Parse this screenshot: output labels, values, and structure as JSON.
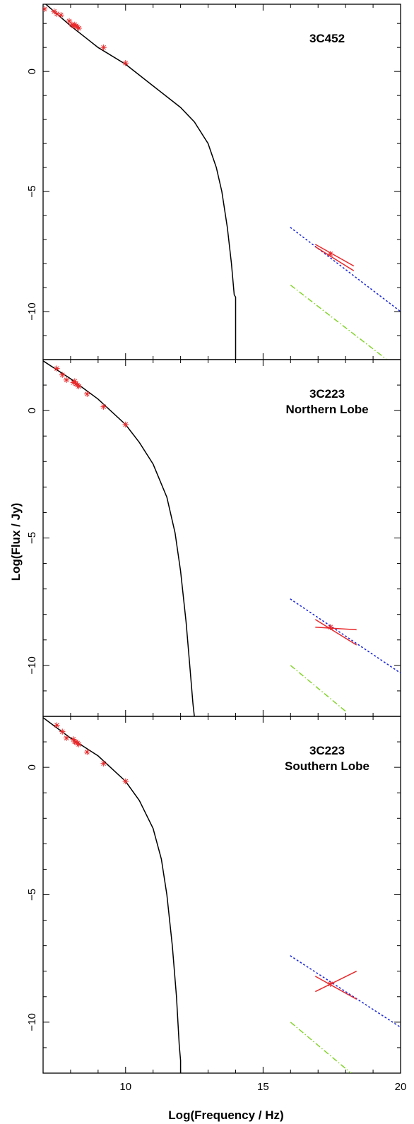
{
  "figure": {
    "xlabel": "Log(Frequency / Hz)",
    "ylabel": "Log(Flux / Jy)"
  },
  "styles": {
    "model_color": "#000000",
    "data_color": "#e8292b",
    "ic_cmb_color": "#1f2bd8",
    "ssc_color": "#7ed321"
  },
  "chart_data": [
    {
      "type": "line",
      "title": "3C452",
      "title_lines": [
        "3C452"
      ],
      "xlim": [
        7,
        20
      ],
      "ylim": [
        -12,
        2.8
      ],
      "x_ticks": [
        10,
        15,
        20
      ],
      "y_ticks": [
        0,
        -5,
        -10
      ],
      "radio_points": {
        "x": [
          7.05,
          7.4,
          7.5,
          7.65,
          7.95,
          8.05,
          8.1,
          8.15,
          8.2,
          8.25,
          8.3,
          9.2,
          10.0
        ],
        "y": [
          2.6,
          2.5,
          2.4,
          2.35,
          2.1,
          1.95,
          1.9,
          1.95,
          1.9,
          1.85,
          1.8,
          1.0,
          0.35
        ]
      },
      "model_curve": {
        "x": [
          7.0,
          8.0,
          9.0,
          10.0,
          11.0,
          12.0,
          12.5,
          13.0,
          13.3,
          13.5,
          13.7,
          13.85,
          13.95,
          14.0,
          14.0
        ],
        "y": [
          2.9,
          1.9,
          1.0,
          0.3,
          -0.6,
          -1.5,
          -2.1,
          -3.0,
          -4.0,
          -5.0,
          -6.5,
          -8.0,
          -9.3,
          -9.4,
          -12.0
        ]
      },
      "ic_cmb_model": {
        "x": [
          16.0,
          20.0
        ],
        "y": [
          -6.5,
          -10.0
        ]
      },
      "ssc_model": {
        "x": [
          16.0,
          19.5
        ],
        "y": [
          -8.9,
          -12.0
        ]
      },
      "xray_point": {
        "x": 17.45,
        "y": -7.6
      },
      "xray_bowtie": [
        {
          "x": [
            16.9,
            18.3
          ],
          "y": [
            -7.3,
            -8.3
          ]
        },
        {
          "x": [
            16.9,
            18.3
          ],
          "y": [
            -7.2,
            -8.1
          ]
        }
      ]
    },
    {
      "type": "line",
      "title": "3C223 Northern Lobe",
      "title_lines": [
        "3C223",
        "Northern Lobe"
      ],
      "xlim": [
        7,
        20
      ],
      "ylim": [
        -12,
        2.0
      ],
      "x_ticks": [
        10,
        15,
        20
      ],
      "y_ticks": [
        0,
        -5,
        -10
      ],
      "radio_points": {
        "x": [
          7.5,
          7.7,
          7.85,
          8.1,
          8.15,
          8.2,
          8.25,
          8.3,
          8.6,
          9.2,
          10.0
        ],
        "y": [
          1.65,
          1.4,
          1.2,
          1.1,
          1.15,
          1.05,
          1.0,
          0.95,
          0.65,
          0.15,
          -0.55
        ]
      },
      "model_curve": {
        "x": [
          7.0,
          8.0,
          9.0,
          10.0,
          10.5,
          11.0,
          11.5,
          11.8,
          12.0,
          12.2,
          12.35,
          12.45,
          12.5
        ],
        "y": [
          1.95,
          1.25,
          0.45,
          -0.55,
          -1.25,
          -2.1,
          -3.4,
          -4.8,
          -6.3,
          -8.3,
          -10.2,
          -11.5,
          -12.0
        ]
      },
      "ic_cmb_model": {
        "x": [
          16.0,
          20.0
        ],
        "y": [
          -7.4,
          -10.3
        ]
      },
      "ssc_model": {
        "x": [
          16.0,
          18.0
        ],
        "y": [
          -10.0,
          -11.8
        ]
      },
      "xray_point": {
        "x": 17.45,
        "y": -8.5
      },
      "xray_bowtie": [
        {
          "x": [
            16.9,
            18.4
          ],
          "y": [
            -8.5,
            -8.6
          ]
        },
        {
          "x": [
            16.9,
            18.4
          ],
          "y": [
            -8.2,
            -9.2
          ]
        }
      ]
    },
    {
      "type": "line",
      "title": "3C223 Southern Lobe",
      "title_lines": [
        "3C223",
        "Southern Lobe"
      ],
      "xlim": [
        7,
        20
      ],
      "ylim": [
        -12,
        2.0
      ],
      "x_ticks": [
        10,
        15,
        20
      ],
      "y_ticks": [
        0,
        -5,
        -10
      ],
      "radio_points": {
        "x": [
          7.5,
          7.7,
          7.85,
          8.1,
          8.15,
          8.2,
          8.25,
          8.3,
          8.6,
          9.2,
          10.0
        ],
        "y": [
          1.65,
          1.4,
          1.15,
          1.1,
          1.0,
          1.0,
          0.95,
          0.9,
          0.6,
          0.15,
          -0.55
        ]
      },
      "model_curve": {
        "x": [
          7.0,
          8.0,
          9.0,
          10.0,
          10.5,
          11.0,
          11.3,
          11.5,
          11.7,
          11.85,
          11.95,
          12.0,
          12.0
        ],
        "y": [
          1.95,
          1.15,
          0.45,
          -0.55,
          -1.3,
          -2.4,
          -3.6,
          -5.0,
          -7.0,
          -9.0,
          -10.9,
          -11.5,
          -12.0
        ]
      },
      "ic_cmb_model": {
        "x": [
          16.0,
          20.0
        ],
        "y": [
          -7.4,
          -10.2
        ]
      },
      "ssc_model": {
        "x": [
          16.0,
          18.2
        ],
        "y": [
          -10.0,
          -12.0
        ]
      },
      "xray_point": {
        "x": 17.45,
        "y": -8.5
      },
      "xray_bowtie": [
        {
          "x": [
            16.9,
            18.4
          ],
          "y": [
            -8.8,
            -8.0
          ]
        },
        {
          "x": [
            16.9,
            18.4
          ],
          "y": [
            -8.2,
            -9.1
          ]
        }
      ]
    }
  ]
}
